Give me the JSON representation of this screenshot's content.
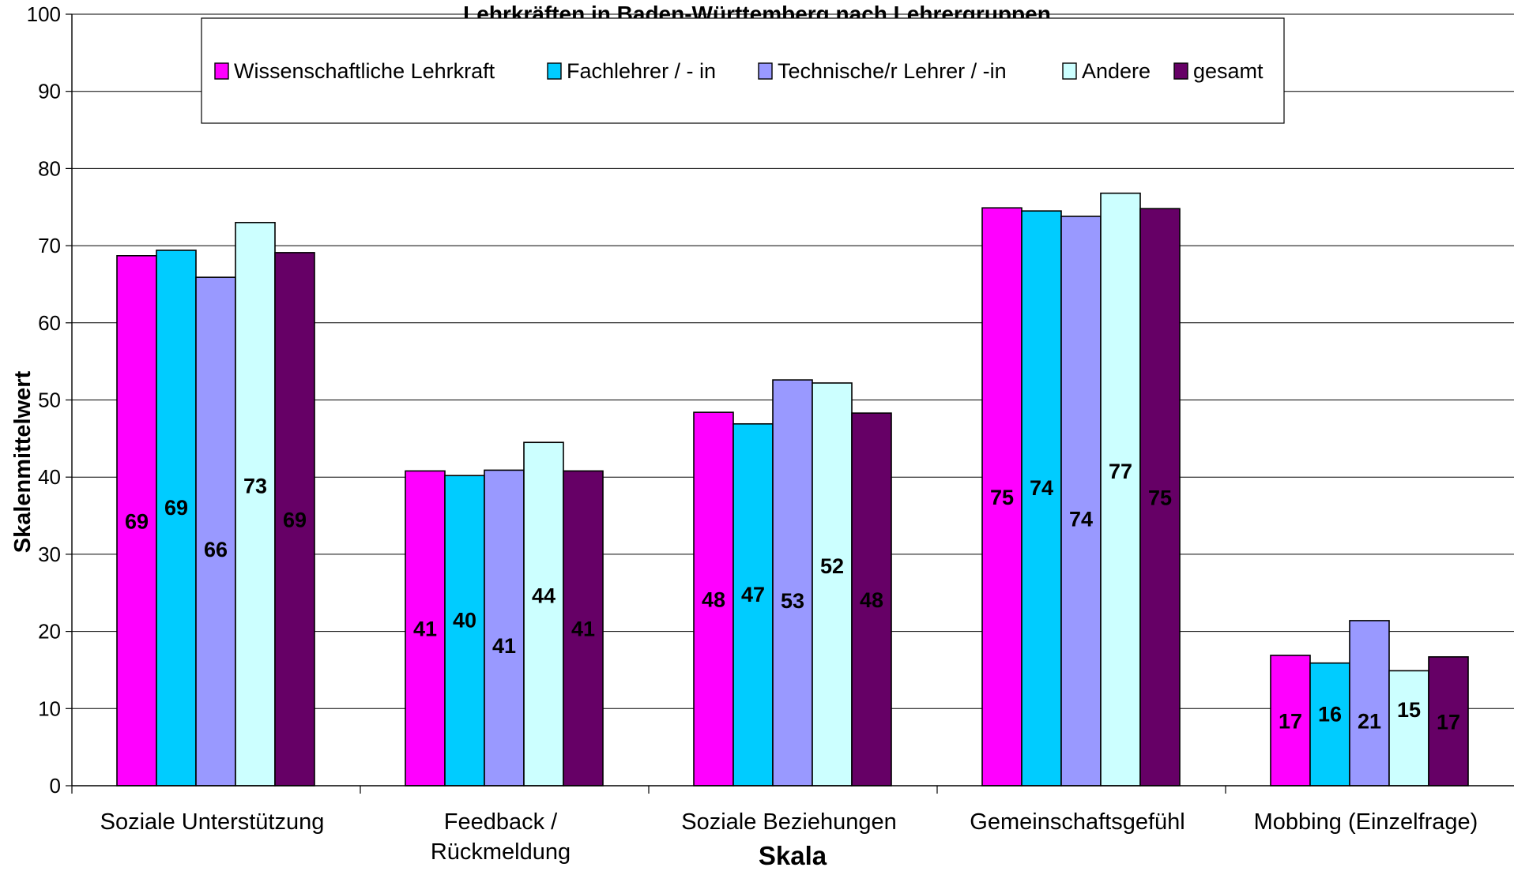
{
  "chart_data": {
    "type": "bar",
    "title": "Lehrkräften in Baden-Württemberg nach Lehrergruppen",
    "xlabel": "Skala",
    "ylabel": "Skalenmittelwert",
    "ylim": [
      0,
      100
    ],
    "yticks": [
      0,
      10,
      20,
      30,
      40,
      50,
      60,
      70,
      80,
      90,
      100
    ],
    "grid": true,
    "legend_position": "top",
    "categories": [
      [
        "Soziale Unterstützung"
      ],
      [
        "Feedback /",
        "Rückmeldung"
      ],
      [
        "Soziale Beziehungen"
      ],
      [
        "Gemeinschaftsgefühl"
      ],
      [
        "Mobbing (Einzelfrage)"
      ]
    ],
    "series": [
      {
        "name": "Wissenschaftliche Lehrkraft",
        "color": "#ff00ff",
        "values": [
          68.7,
          40.8,
          48.4,
          74.9,
          16.9
        ],
        "labels": [
          "69",
          "41",
          "48",
          "75",
          "17"
        ]
      },
      {
        "name": "Fachlehrer / - in",
        "color": "#00ccff",
        "values": [
          69.4,
          40.2,
          46.9,
          74.5,
          15.9
        ],
        "labels": [
          "69",
          "40",
          "47",
          "74",
          "16"
        ]
      },
      {
        "name": "Technische/r Lehrer / -in",
        "color": "#9999ff",
        "values": [
          65.9,
          40.9,
          52.6,
          73.8,
          21.4
        ],
        "labels": [
          "66",
          "41",
          "53",
          "74",
          "21"
        ]
      },
      {
        "name": "Andere",
        "color": "#ccffff",
        "values": [
          73.0,
          44.5,
          52.2,
          76.8,
          14.9
        ],
        "labels": [
          "73",
          "44",
          "52",
          "77",
          "15"
        ]
      },
      {
        "name": "gesamt",
        "color": "#660066",
        "values": [
          69.1,
          40.8,
          48.3,
          74.8,
          16.7
        ],
        "labels": [
          "69",
          "41",
          "48",
          "75",
          "17"
        ]
      }
    ]
  }
}
